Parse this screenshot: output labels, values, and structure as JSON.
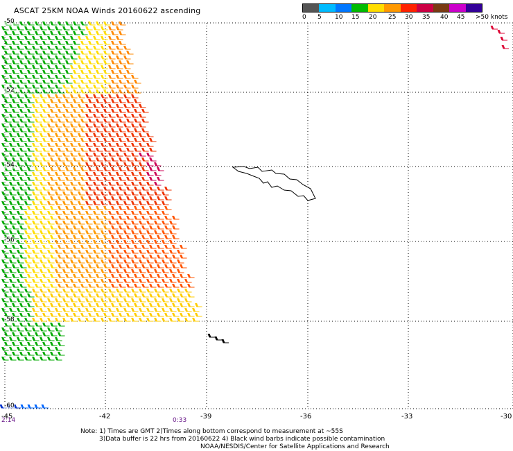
{
  "title": "ASCAT 25KM NOAA Winds 20160622 ascending",
  "legend": {
    "colors": [
      "#555555",
      "#00bbff",
      "#0077ff",
      "#00bb00",
      "#ffdd00",
      "#ff9900",
      "#ff2200",
      "#cc0044",
      "#7a3a12",
      "#cc00cc",
      "#330099"
    ],
    "labels": [
      "0",
      "5",
      "10",
      "15",
      "20",
      "25",
      "30",
      "35",
      "40",
      "45",
      ">50 knots"
    ]
  },
  "axes": {
    "longitude_ticks": [
      "-45",
      "-42",
      "-39",
      "-36",
      "-33",
      "-30"
    ],
    "latitude_ticks": [
      "-50",
      "-52",
      "-54",
      "-56",
      "-58",
      "-60"
    ]
  },
  "times": [
    "2:14",
    "0:33"
  ],
  "notes": [
    "Note: 1) Times are GMT 2)Times along bottom correspond to measurement at ~55S",
    "3)Data buffer is 22 hrs from 20160622 4) Black wind barbs indicate possible contamination",
    "NOAA/NESDIS/Center for Satellite Applications and Research"
  ],
  "map": {
    "landmass": "south-georgia-island",
    "grid": "dotted"
  }
}
